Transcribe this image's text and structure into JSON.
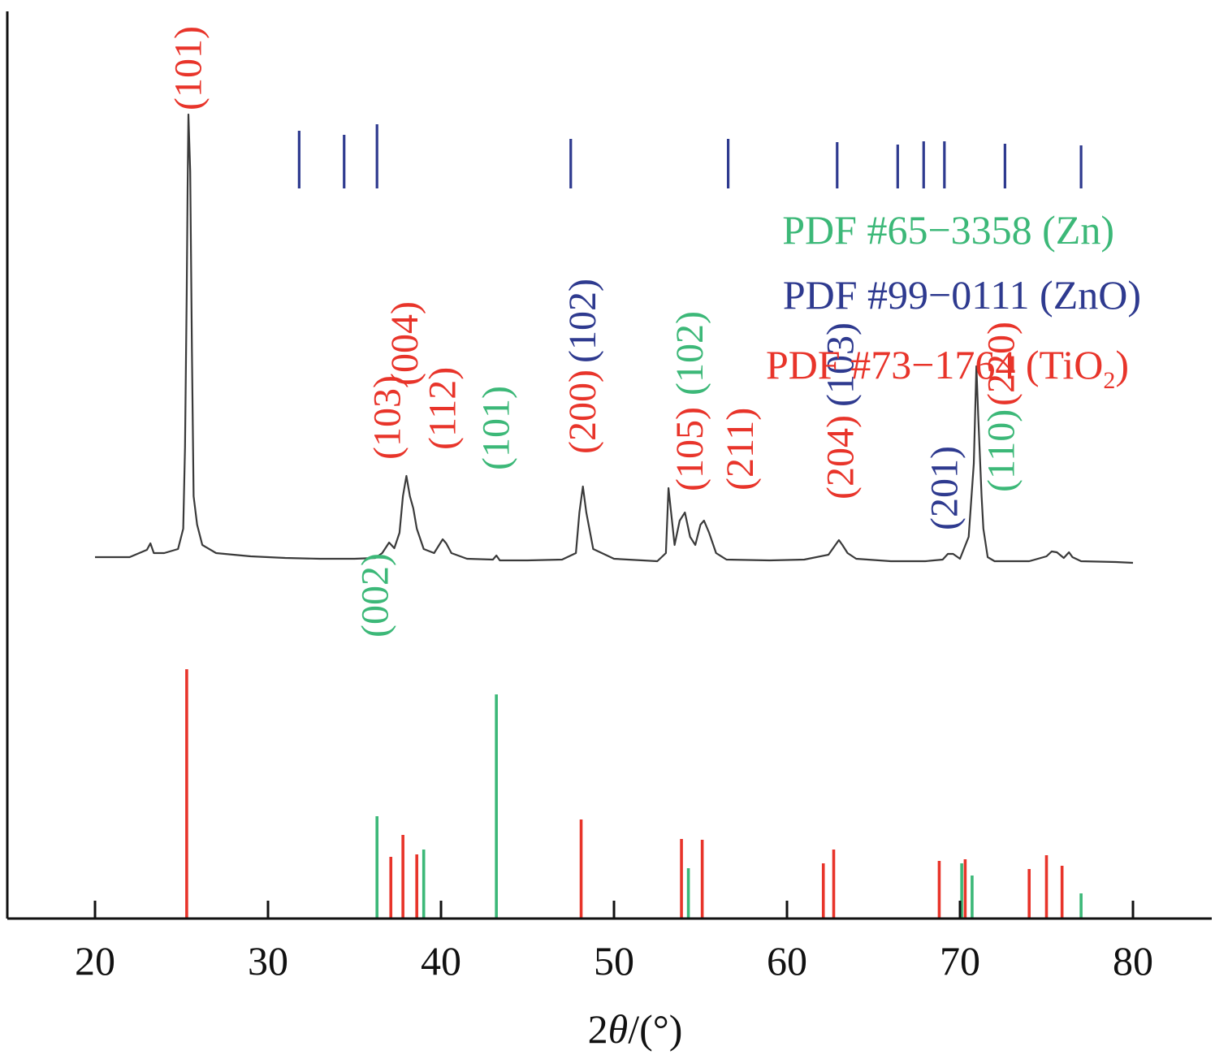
{
  "chart_data": {
    "type": "line",
    "xlabel_parts": [
      "2",
      "θ",
      "/(°)"
    ],
    "xlim": [
      15,
      85
    ],
    "x_ticks": [
      20,
      30,
      40,
      50,
      60,
      70,
      80
    ],
    "x_tick_labels": [
      "20",
      "30",
      "40",
      "50",
      "60",
      "70",
      "80"
    ],
    "ylim": [
      0,
      100
    ],
    "grid": false,
    "legend_placement": "top-right",
    "colors": {
      "Zn": "#3cb878",
      "ZnO": "#2e3a8f",
      "TiO2": "#e8342a",
      "pattern": "#3a3a3a"
    },
    "legend": [
      {
        "key": "Zn",
        "prefix": "PDF #65−3358 (Zn)",
        "sub": "",
        "suffix": ""
      },
      {
        "key": "ZnO",
        "prefix": "PDF #99−0111 (ZnO)",
        "sub": "",
        "suffix": ""
      },
      {
        "key": "TiO2",
        "prefix": "PDF #73−1764 (TiO",
        "sub": "2",
        "suffix": ")"
      }
    ],
    "pattern": {
      "x": [
        20,
        22,
        23,
        23.2,
        23.4,
        24,
        24.8,
        25.1,
        25.2,
        25.3,
        25.35,
        25.4,
        25.5,
        25.6,
        25.7,
        25.9,
        26.2,
        27,
        29,
        31,
        33,
        35,
        36.2,
        36.6,
        37,
        37.3,
        37.6,
        37.8,
        38,
        38.2,
        38.4,
        38.6,
        39,
        39.6,
        40.1,
        40.3,
        40.6,
        41.5,
        43,
        43.2,
        43.4,
        45,
        47,
        47.8,
        48,
        48.2,
        48.4,
        48.8,
        50,
        52.5,
        53,
        53.15,
        53.3,
        53.5,
        53.8,
        54.1,
        54.4,
        54.7,
        55,
        55.2,
        55.5,
        55.9,
        56.5,
        59,
        61,
        62.4,
        62.8,
        63,
        63.2,
        63.5,
        64,
        66,
        68,
        69,
        69.3,
        69.6,
        70,
        70.5,
        70.8,
        70.95,
        71.05,
        71.15,
        71.25,
        71.35,
        71.6,
        72,
        74,
        75,
        75.3,
        75.6,
        76,
        76.3,
        76.5,
        77,
        79,
        80
      ],
      "y": [
        44.5,
        44.5,
        45.4,
        46.2,
        45,
        45,
        45.5,
        48,
        58,
        77,
        90,
        99,
        92,
        70,
        52,
        48.5,
        46,
        45,
        44.6,
        44.4,
        44.3,
        44.3,
        44.4,
        45,
        46.3,
        45.6,
        47.5,
        52,
        54.5,
        52,
        50.5,
        48,
        45.5,
        45,
        46.7,
        46.2,
        45,
        44.3,
        44.2,
        44.7,
        44.1,
        44.1,
        44.2,
        45,
        50,
        53.2,
        50,
        45.5,
        44.3,
        44,
        45,
        53,
        50,
        46,
        49,
        50,
        47,
        46,
        48.5,
        49,
        47.5,
        45,
        44.2,
        44.1,
        44.2,
        44.8,
        46,
        46.6,
        46,
        45,
        44.3,
        44,
        44,
        44.2,
        44.9,
        44.9,
        44.3,
        47,
        56,
        68,
        62,
        57,
        52,
        48,
        44.5,
        44,
        44,
        44.6,
        45.2,
        45.1,
        44.4,
        45.1,
        44.5,
        44,
        43.9,
        43.8
      ]
    },
    "sticks": {
      "ZnO": {
        "x": [
          31.8,
          34.4,
          36.3,
          47.5,
          56.6,
          62.9,
          66.4,
          67.9,
          69.1,
          72.6,
          77.0
        ],
        "top": [
          97,
          96.5,
          97.8,
          96,
          96,
          95.6,
          95.3,
          95.7,
          95.7,
          95.4,
          95.2
        ],
        "bottom": [
          89.9,
          89.9,
          89.9,
          89.9,
          89.9,
          89.9,
          89.9,
          89.9,
          89.9,
          89.9,
          89.9
        ]
      },
      "Zn": {
        "x": [
          36.3,
          39.0,
          43.2,
          54.3,
          70.1,
          70.7,
          77.0
        ],
        "values": [
          12.6,
          8.5,
          27.6,
          6.2,
          6.8,
          5.3,
          3.1
        ]
      },
      "TiO2": {
        "x": [
          25.3,
          37.1,
          37.8,
          38.6,
          48.1,
          53.9,
          55.1,
          62.1,
          62.7,
          68.8,
          70.3,
          74.0,
          75.0,
          75.9
        ],
        "values": [
          30.7,
          7.6,
          10.3,
          7.9,
          12.2,
          9.8,
          9.7,
          6.8,
          8.5,
          7.1,
          7.3,
          6.1,
          7.8,
          6.5
        ]
      }
    },
    "peak_labels": [
      {
        "text": "(101)",
        "phase": "TiO2",
        "x": 25.4,
        "y": 99.5
      },
      {
        "text": "(103)",
        "phase": "TiO2",
        "x": 36.9,
        "y": 56.5
      },
      {
        "text": "(004)",
        "phase": "TiO2",
        "x": 37.9,
        "y": 65.6
      },
      {
        "text": "(112)",
        "phase": "TiO2",
        "x": 40.1,
        "y": 57.7
      },
      {
        "text": "(101)",
        "phase": "Zn",
        "x": 43.2,
        "y": 55.2
      },
      {
        "text": "(002)",
        "phase": "Zn",
        "x": 36.2,
        "y": 34.6
      },
      {
        "text": "(200)",
        "phase": "TiO2",
        "x": 48.2,
        "y": 57.2
      },
      {
        "text": "(102)",
        "phase": "ZnO",
        "x": 48.2,
        "y": 68.4
      },
      {
        "text": "(105)",
        "phase": "TiO2",
        "x": 54.4,
        "y": 52.6
      },
      {
        "text": "(102)",
        "phase": "Zn",
        "x": 54.4,
        "y": 64.4
      },
      {
        "text": "(211)",
        "phase": "TiO2",
        "x": 57.3,
        "y": 52.7
      },
      {
        "text": "(204)",
        "phase": "TiO2",
        "x": 63.1,
        "y": 51.6
      },
      {
        "text": "(103)",
        "phase": "ZnO",
        "x": 63.1,
        "y": 63.0
      },
      {
        "text": "(201)",
        "phase": "ZnO",
        "x": 69.1,
        "y": 47.8
      },
      {
        "text": "(220)",
        "phase": "TiO2",
        "x": 72.4,
        "y": 63.1
      },
      {
        "text": "(110)",
        "phase": "Zn",
        "x": 72.4,
        "y": 52.5
      }
    ]
  }
}
